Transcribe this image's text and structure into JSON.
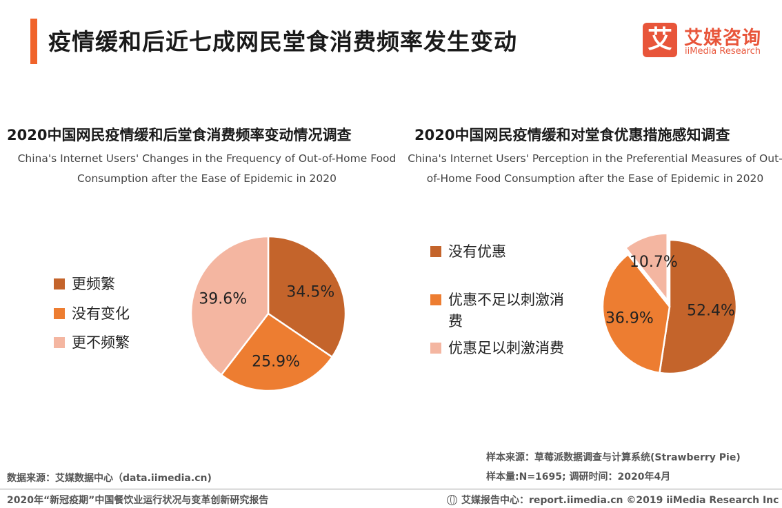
{
  "header": {
    "title": "疫情缓和后近七成网民堂食消费频率发生变动",
    "logo_mark": "艾",
    "logo_cn": "艾媒咨询",
    "logo_en": "iiMedia Research"
  },
  "colors": {
    "accent": "#f0632b",
    "dark_orange": "#c4642b",
    "orange": "#ed7d31",
    "light_peach": "#f4b6a1"
  },
  "chart_data": [
    {
      "type": "pie",
      "title": "2020中国网民疫情缓和后堂食消费频率变动情况调查",
      "subtitle": "China's Internet Users' Changes in the Frequency of Out-of-Home Food Consumption after the Ease of Epidemic in 2020",
      "legend_position": "left",
      "slices": [
        {
          "label": "更频繁",
          "value": 34.5,
          "display": "34.5%",
          "color": "#c4642b"
        },
        {
          "label": "没有变化",
          "value": 25.9,
          "display": "25.9%",
          "color": "#ed7d31"
        },
        {
          "label": "更不频繁",
          "value": 39.6,
          "display": "39.6%",
          "color": "#f4b6a1"
        }
      ]
    },
    {
      "type": "pie",
      "title": "2020中国网民疫情缓和对堂食优惠措施感知调查",
      "subtitle": "China's Internet Users' Perception in the Preferential Measures of Out-of-Home Food Consumption after the Ease of Epidemic in 2020",
      "legend_position": "left",
      "slices": [
        {
          "label": "没有优惠",
          "value": 52.4,
          "display": "52.4%",
          "color": "#c4642b"
        },
        {
          "label": "优惠不足以刺激消费",
          "value": 36.9,
          "display": "36.9%",
          "color": "#ed7d31"
        },
        {
          "label": "优惠足以刺激消费",
          "value": 10.7,
          "display": "10.7%",
          "color": "#f4b6a1",
          "exploded": true
        }
      ]
    }
  ],
  "footer": {
    "data_source": "数据来源：艾媒数据中心（data.iimedia.cn)",
    "sample_source": "样本来源：草莓派数据调查与计算系统(Strawberry Pie)",
    "sample_size": "样本量:N=1695; 调研时间：2020年4月",
    "report_title": "2020年“新冠疫期”中国餐饮业运行状况与变革创新研究报告",
    "report_center": "艾媒报告中心：report.iimedia.cn  ©2019  iiMedia Research  Inc"
  }
}
